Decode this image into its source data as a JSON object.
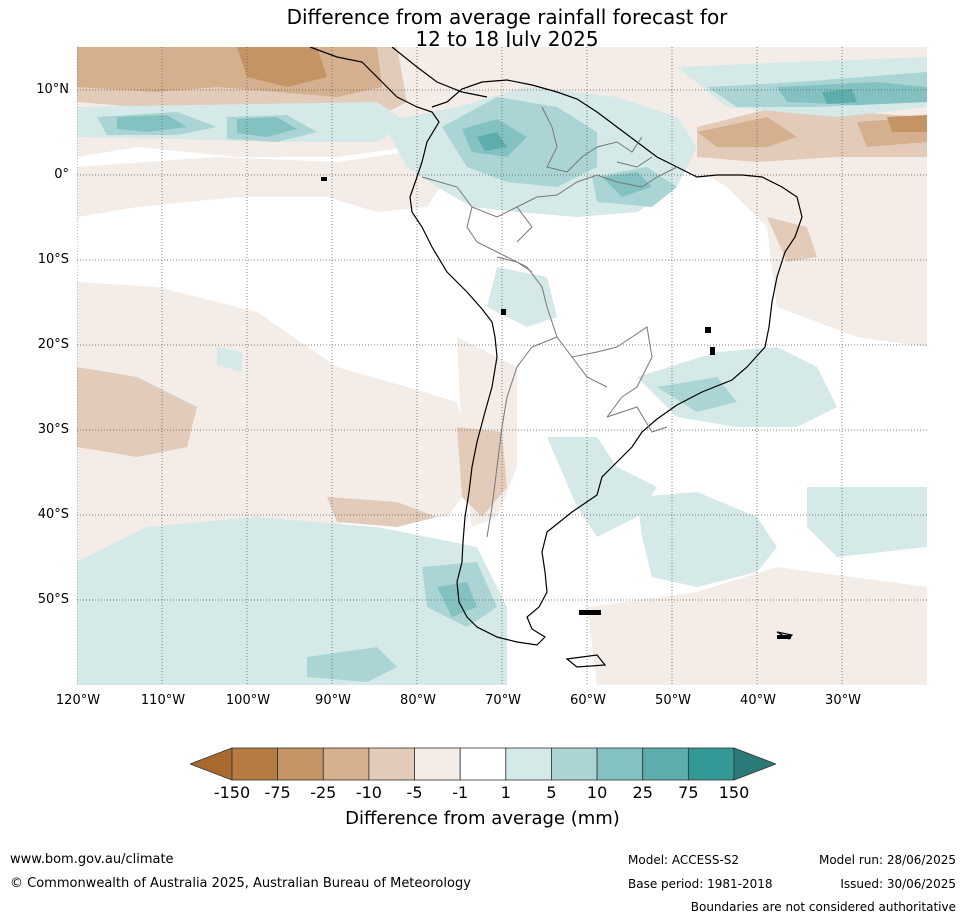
{
  "title_line1": "Difference from average rainfall forecast for",
  "title_line2": "12 to 18 July 2025",
  "latitude_labels": [
    "10°N",
    "0°",
    "10°S",
    "20°S",
    "30°S",
    "40°S",
    "50°S"
  ],
  "longitude_labels": [
    "120°W",
    "110°W",
    "100°W",
    "90°W",
    "80°W",
    "70°W",
    "60°W",
    "50°W",
    "40°W",
    "30°W"
  ],
  "colorbar": {
    "ticks": [
      "-150",
      "-75",
      "-25",
      "-10",
      "-5",
      "-1",
      "1",
      "5",
      "10",
      "25",
      "75",
      "150"
    ],
    "colors": [
      "#a86a2e",
      "#b57b40",
      "#c49465",
      "#d4b08f",
      "#e3cbb9",
      "#f4ece6",
      "#ffffff",
      "#d5e9e8",
      "#aad5d4",
      "#84c2c1",
      "#5cadab",
      "#329996",
      "#2a7a78"
    ],
    "label": "Difference from average (mm)"
  },
  "footer": {
    "url": "www.bom.gov.au/climate",
    "copyright": "© Commonwealth of Australia 2025, Australian Bureau of Meteorology",
    "model": "Model: ACCESS-S2",
    "base_period": "Base period: 1981-2018",
    "model_run": "Model run: 28/06/2025",
    "issued": "Issued: 30/06/2025",
    "disclaimer": "Boundaries are not considered authoritative"
  }
}
